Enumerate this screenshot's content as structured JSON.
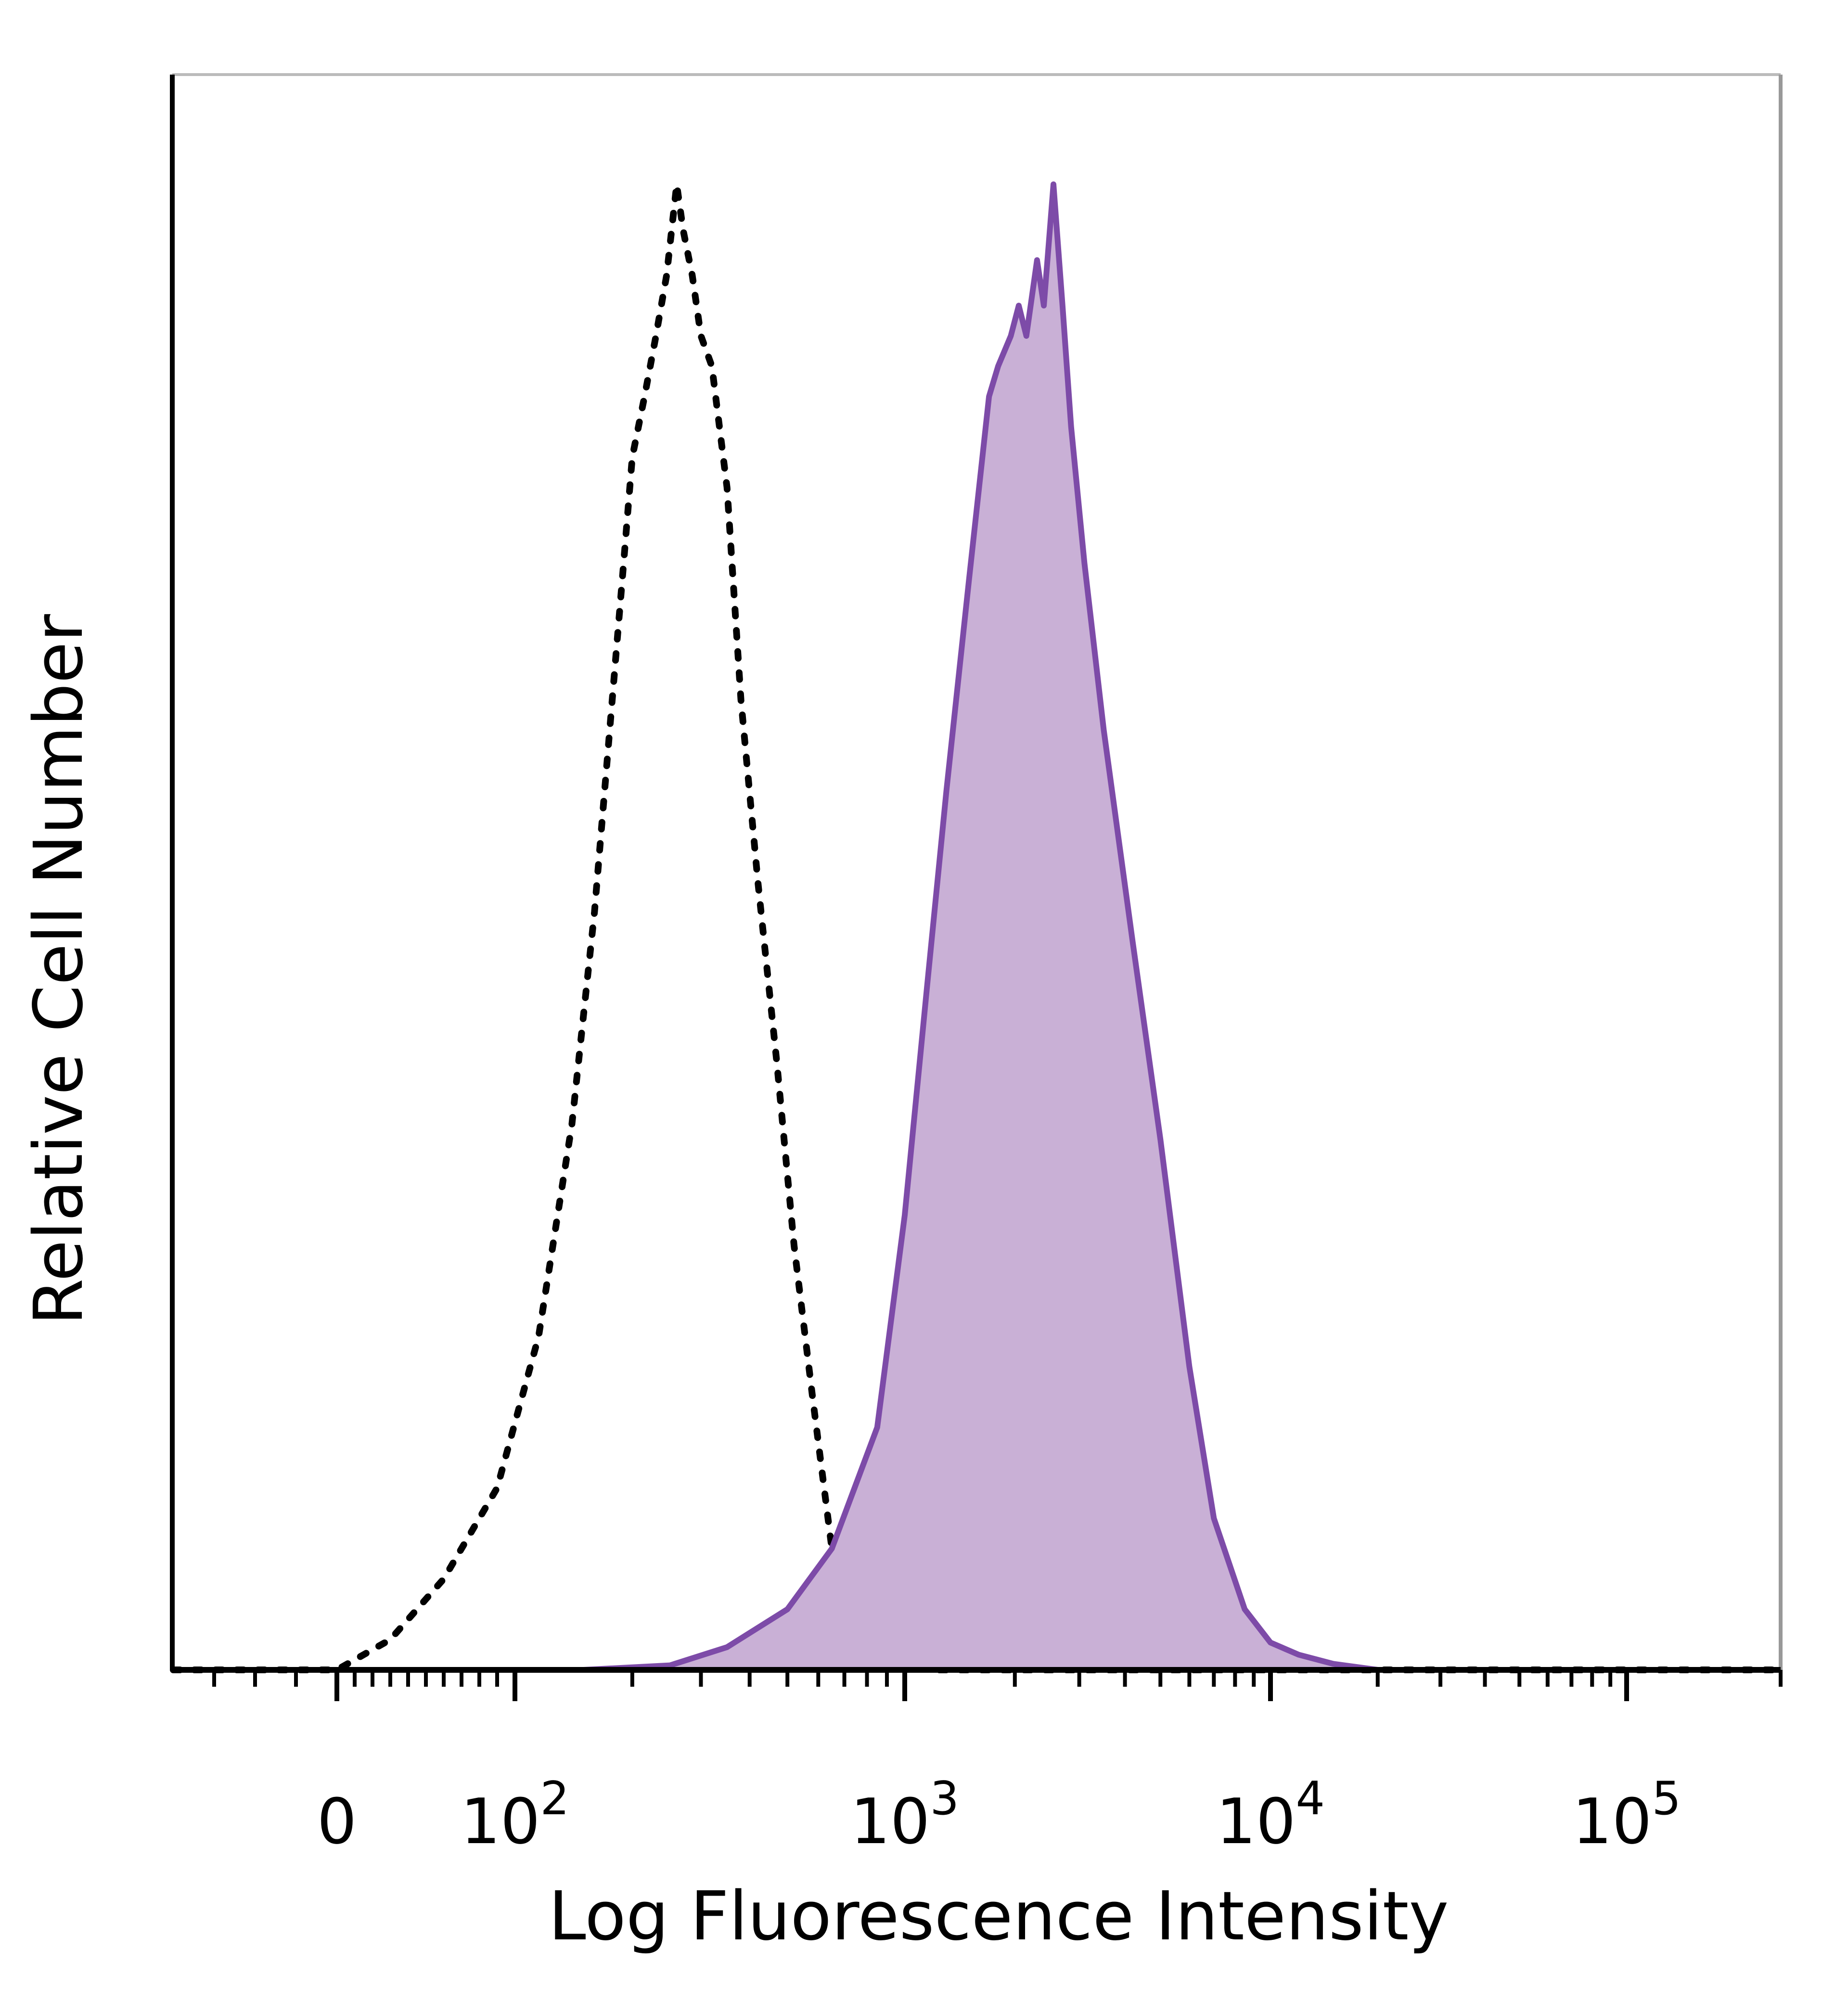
{
  "chart_data": {
    "type": "area",
    "title": "",
    "xlabel": "Log Fluorescence Intensity",
    "ylabel": "Relative Cell Number",
    "x_scale": "biexponential (logicle)",
    "xlim": [
      -40,
      200000
    ],
    "ylim": [
      0,
      100
    ],
    "grid": false,
    "legend": "none",
    "x_ticks": [
      {
        "value": 0,
        "base": "0",
        "exp": ""
      },
      {
        "value": 100,
        "base": "10",
        "exp": "2"
      },
      {
        "value": 1000,
        "base": "10",
        "exp": "3"
      },
      {
        "value": 10000,
        "base": "10",
        "exp": "4"
      },
      {
        "value": 100000,
        "base": "10",
        "exp": "5"
      }
    ],
    "series": [
      {
        "style": "dotted",
        "color": "#000000",
        "fill": "none",
        "points": [
          [
            -40,
            0
          ],
          [
            0,
            0
          ],
          [
            30,
            2
          ],
          [
            60,
            6
          ],
          [
            90,
            12
          ],
          [
            115,
            22
          ],
          [
            140,
            36
          ],
          [
            160,
            50
          ],
          [
            175,
            62
          ],
          [
            190,
            73
          ],
          [
            200,
            80
          ],
          [
            215,
            84
          ],
          [
            230,
            88
          ],
          [
            245,
            92
          ],
          [
            260,
            98
          ],
          [
            270,
            95
          ],
          [
            285,
            92
          ],
          [
            300,
            88
          ],
          [
            320,
            86
          ],
          [
            350,
            78
          ],
          [
            380,
            64
          ],
          [
            420,
            52
          ],
          [
            470,
            40
          ],
          [
            520,
            28
          ],
          [
            580,
            18
          ],
          [
            650,
            8
          ],
          [
            750,
            3
          ],
          [
            900,
            1
          ],
          [
            1200,
            0
          ],
          [
            200000,
            0
          ]
        ]
      },
      {
        "style": "solid-filled",
        "color": "#7d4ba8",
        "fill": "#c9b0d6",
        "points": [
          [
            -40,
            0
          ],
          [
            150,
            0
          ],
          [
            250,
            0.3
          ],
          [
            350,
            1.5
          ],
          [
            500,
            4
          ],
          [
            650,
            8
          ],
          [
            850,
            16
          ],
          [
            1000,
            30
          ],
          [
            1150,
            45
          ],
          [
            1300,
            58
          ],
          [
            1500,
            72
          ],
          [
            1700,
            84
          ],
          [
            1800,
            86
          ],
          [
            1950,
            88
          ],
          [
            2050,
            90
          ],
          [
            2150,
            88
          ],
          [
            2300,
            93
          ],
          [
            2400,
            90
          ],
          [
            2550,
            98
          ],
          [
            2700,
            90
          ],
          [
            2850,
            82
          ],
          [
            3100,
            73
          ],
          [
            3500,
            62
          ],
          [
            4200,
            48
          ],
          [
            5000,
            35
          ],
          [
            6000,
            20
          ],
          [
            7000,
            10
          ],
          [
            8500,
            4
          ],
          [
            10000,
            1.8
          ],
          [
            12000,
            1
          ],
          [
            15000,
            0.4
          ],
          [
            20000,
            0
          ],
          [
            200000,
            0
          ]
        ]
      }
    ]
  }
}
